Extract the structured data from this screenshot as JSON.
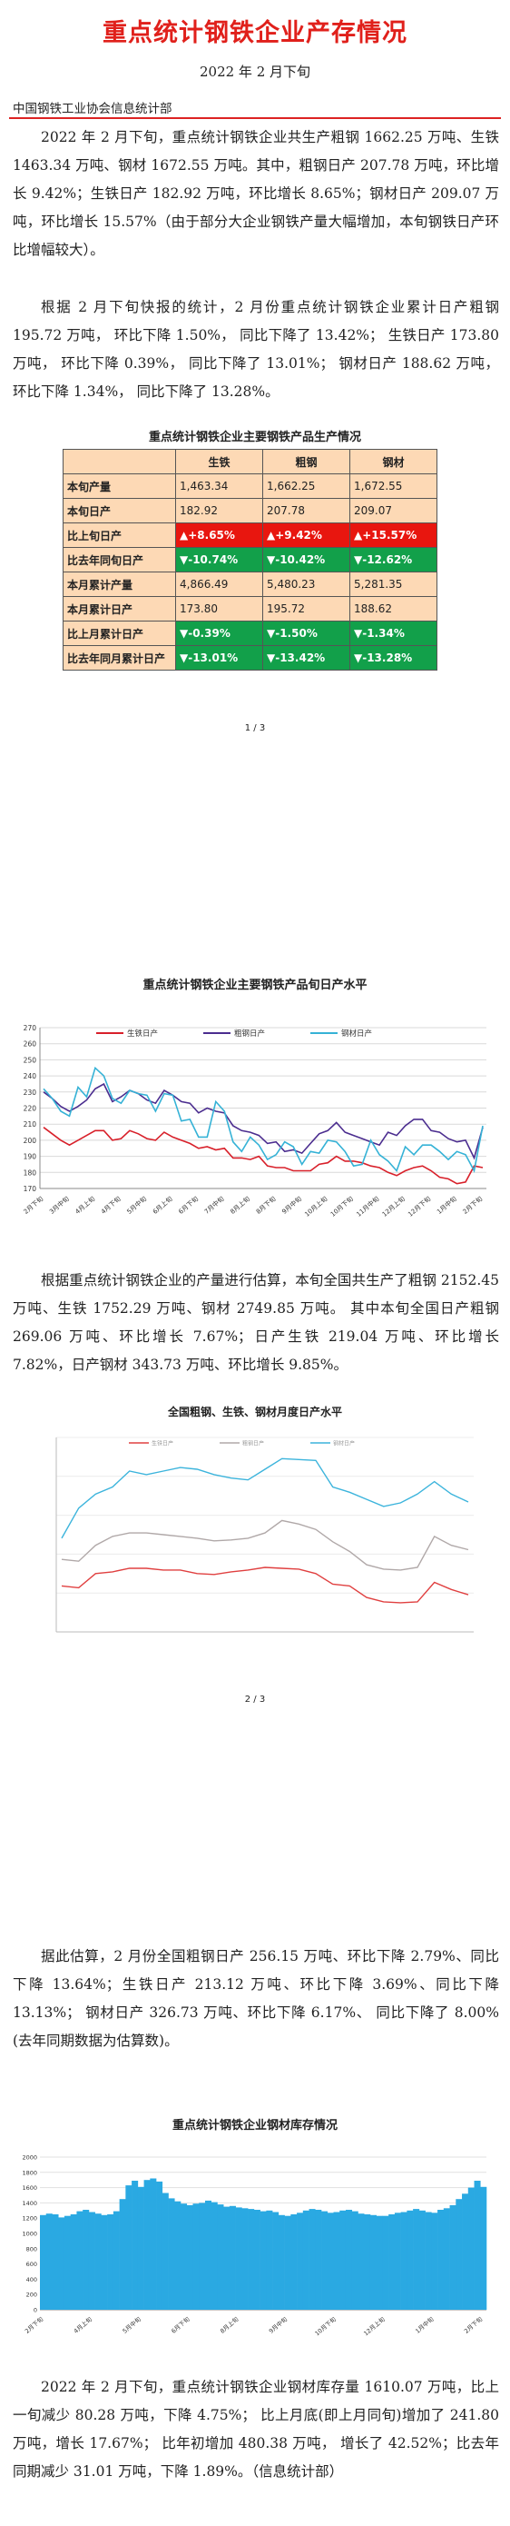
{
  "title": "重点统计钢铁企业产存情况",
  "date": "2022 年 2 月下旬",
  "org": "中国钢铁工业协会信息统计部",
  "paragraphs": {
    "p1": "2022 年 2 月下旬，重点统计钢铁企业共生产粗钢 1662.25 万吨、生铁 1463.34 万吨、钢材 1672.55 万吨。其中，粗钢日产 207.78 万吨，环比增长 9.42%；生铁日产 182.92 万吨，环比增长 8.65%；钢材日产 209.07 万吨，环比增长 15.57%（由于部分大企业钢铁产量大幅增加，本旬钢铁日产环比增幅较大）。",
    "p2": "根据 2 月下旬快报的统计，2 月份重点统计钢铁企业累计日产粗钢 195.72 万吨， 环比下降 1.50%， 同比下降了 13.42%； 生铁日产 173.80 万吨， 环比下降 0.39%， 同比下降了 13.01%； 钢材日产 188.62 万吨， 环比下降 1.34%， 同比下降了 13.28%。",
    "p3": "根据重点统计钢铁企业的产量进行估算，本旬全国共生产了粗钢 2152.45 万吨、生铁 1752.29 万吨、钢材 2749.85 万吨。 其中本旬全国日产粗钢 269.06 万吨、环比增长 7.67%；日产生铁 219.04 万吨、环比增长 7.82%，日产钢材 343.73 万吨、环比增长 9.85%。",
    "p4": "据此估算，2 月份全国粗钢日产 256.15 万吨、环比下降 2.79%、同比下降 13.64%；生铁日产 213.12 万吨、环比下降 3.69%、同比下降 13.13%； 钢材日产 326.73 万吨、环比下降 6.17%、 同比下降了 8.00%(去年同期数据为估算数)。",
    "p5": "2022 年 2 月下旬，重点统计钢铁企业钢材库存量 1610.07 万吨，比上一旬减少 80.28 万吨，下降 4.75%； 比上月底(即上月同旬)增加了 241.80 万吨，增长 17.67%； 比年初增加 480.38 万吨， 增长了 42.52%；比去年同期减少 31.01 万吨，下降 1.89%。（信息统计部）"
  },
  "table": {
    "title": "重点统计钢铁企业主要钢铁产品生产情况",
    "headers": [
      "",
      "生铁",
      "粗钢",
      "钢材"
    ],
    "rows": [
      {
        "label": "本旬产量",
        "cells": [
          "1,463.34",
          "1,662.25",
          "1,672.55"
        ],
        "status": ""
      },
      {
        "label": "本旬日产",
        "cells": [
          "182.92",
          "207.78",
          "209.07"
        ],
        "status": ""
      },
      {
        "label": "比上旬日产",
        "cells": [
          "▲+8.65%",
          "▲+9.42%",
          "▲+15.57%"
        ],
        "status": "up"
      },
      {
        "label": "比去年同旬日产",
        "cells": [
          "▼-10.74%",
          "▼-10.42%",
          "▼-12.62%"
        ],
        "status": "down"
      },
      {
        "label": "本月累计产量",
        "cells": [
          "4,866.49",
          "5,480.23",
          "5,281.35"
        ],
        "status": ""
      },
      {
        "label": "本月累计日产",
        "cells": [
          "173.80",
          "195.72",
          "188.62"
        ],
        "status": ""
      },
      {
        "label": "比上月累计日产",
        "cells": [
          "▼-0.39%",
          "▼-1.50%",
          "▼-1.34%"
        ],
        "status": "down"
      },
      {
        "label": "比去年同月累计日产",
        "cells": [
          "▼-13.01%",
          "▼-13.42%",
          "▼-13.28%"
        ],
        "status": "down"
      }
    ]
  },
  "page_numbers": [
    "1 / 3",
    "2 / 3"
  ],
  "chart_data": [
    {
      "type": "line",
      "title": "重点统计钢铁企业主要钢铁产品旬日产水平",
      "ylim": [
        170,
        270
      ],
      "yticks": [
        170,
        180,
        190,
        200,
        210,
        220,
        230,
        240,
        250,
        260,
        270
      ],
      "xtick_labels": [
        "2月下旬",
        "3月中旬",
        "4月上旬",
        "4月下旬",
        "5月中旬",
        "6月上旬",
        "6月下旬",
        "7月中旬",
        "8月上旬",
        "8月下旬",
        "9月中旬",
        "10月上旬",
        "10月下旬",
        "11月中旬",
        "12月上旬",
        "12月下旬",
        "1月中旬",
        "2月下旬"
      ],
      "legend": [
        "生铁日产",
        "粗钢日产",
        "钢材日产"
      ],
      "colors": [
        "#d8202a",
        "#4b2d8f",
        "#35b2d6"
      ],
      "series": [
        {
          "name": "生铁日产",
          "values": [
            208,
            204,
            200,
            197,
            200,
            203,
            206,
            206,
            200,
            201,
            206,
            204,
            201,
            200,
            205,
            202,
            200,
            198,
            195,
            196,
            194,
            195,
            189,
            189,
            188,
            190,
            184,
            183,
            183,
            181,
            181,
            181,
            185,
            186,
            190,
            187,
            187,
            186,
            184,
            183,
            180,
            178,
            181,
            183,
            184,
            181,
            177,
            176,
            173,
            174,
            184,
            183
          ]
        },
        {
          "name": "粗钢日产",
          "values": [
            230,
            226,
            221,
            218,
            221,
            225,
            232,
            235,
            224,
            227,
            231,
            229,
            225,
            223,
            231,
            228,
            224,
            223,
            217,
            220,
            218,
            217,
            209,
            206,
            205,
            203,
            198,
            199,
            193,
            194,
            192,
            198,
            204,
            206,
            211,
            205,
            203,
            201,
            199,
            197,
            205,
            203,
            209,
            213,
            213,
            206,
            205,
            201,
            199,
            200,
            189,
            208
          ]
        },
        {
          "name": "钢材日产",
          "values": [
            232,
            226,
            218,
            215,
            233,
            227,
            245,
            240,
            226,
            223,
            231,
            229,
            228,
            218,
            229,
            228,
            212,
            213,
            202,
            202,
            224,
            218,
            199,
            193,
            202,
            197,
            188,
            191,
            199,
            196,
            185,
            193,
            192,
            200,
            199,
            193,
            184,
            185,
            200,
            191,
            187,
            181,
            196,
            191,
            197,
            197,
            193,
            188,
            193,
            191,
            181,
            209
          ]
        }
      ]
    },
    {
      "type": "line",
      "title": "全国粗钢、生铁、钢材月度日产水平",
      "legend": [
        "生铁日产",
        "粗钢日产",
        "钢材日产"
      ],
      "colors": [
        "#e04040",
        "#b0a8a8",
        "#3cb4dc"
      ],
      "series": [
        {
          "name": "生铁日产",
          "values": [
            232,
            230,
            246,
            248,
            252,
            252,
            250,
            250,
            246,
            245,
            248,
            250,
            253,
            252,
            251,
            246,
            234,
            232,
            219,
            214,
            213,
            214,
            236,
            228,
            222
          ]
        },
        {
          "name": "粗钢日产",
          "values": [
            262,
            260,
            278,
            288,
            292,
            292,
            290,
            288,
            286,
            283,
            284,
            286,
            292,
            306,
            302,
            296,
            282,
            271,
            256,
            251,
            250,
            253,
            288,
            278,
            273
          ]
        },
        {
          "name": "钢材日产",
          "values": [
            286,
            320,
            336,
            344,
            362,
            358,
            362,
            366,
            364,
            358,
            354,
            352,
            364,
            376,
            375,
            374,
            344,
            338,
            330,
            322,
            326,
            336,
            350,
            336,
            327
          ]
        }
      ]
    },
    {
      "type": "bar",
      "title": "重点统计钢铁企业钢材库存情况",
      "ylim": [
        0,
        2000
      ],
      "yticks": [
        0,
        200,
        400,
        600,
        800,
        1000,
        1200,
        1400,
        1600,
        1800,
        2000
      ],
      "xtick_labels": [
        "2月下旬",
        "4月上旬",
        "5月中旬",
        "6月下旬",
        "8月上旬",
        "9月中旬",
        "10月下旬",
        "12月上旬",
        "1月中旬",
        "2月下旬"
      ],
      "color": "#2aa9e2",
      "values": [
        1240,
        1260,
        1250,
        1210,
        1230,
        1250,
        1290,
        1310,
        1280,
        1260,
        1240,
        1250,
        1290,
        1450,
        1630,
        1690,
        1610,
        1700,
        1720,
        1680,
        1530,
        1460,
        1420,
        1390,
        1370,
        1390,
        1400,
        1430,
        1410,
        1380,
        1350,
        1360,
        1340,
        1330,
        1320,
        1310,
        1290,
        1300,
        1280,
        1240,
        1230,
        1250,
        1270,
        1300,
        1320,
        1310,
        1290,
        1270,
        1280,
        1300,
        1310,
        1290,
        1260,
        1250,
        1240,
        1230,
        1230,
        1250,
        1270,
        1280,
        1300,
        1320,
        1300,
        1280,
        1270,
        1310,
        1330,
        1370,
        1450,
        1520,
        1600,
        1690,
        1610
      ]
    }
  ]
}
